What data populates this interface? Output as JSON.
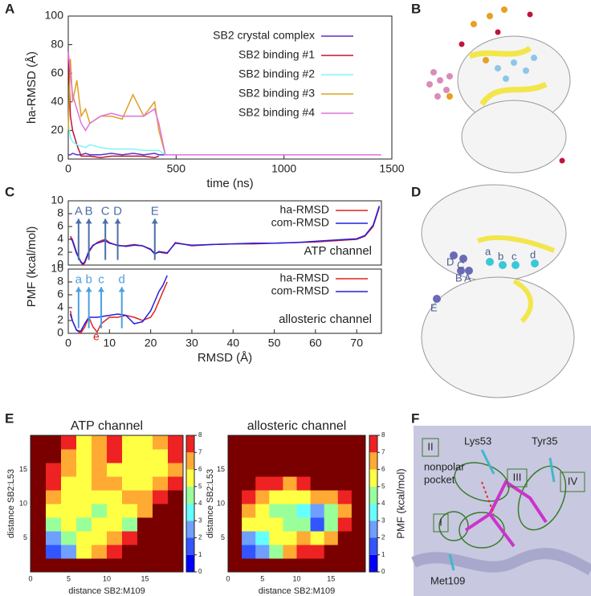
{
  "panel_labels": [
    "A",
    "B",
    "C",
    "D",
    "E",
    "F"
  ],
  "structure_D": {
    "labels": [
      "D",
      "C",
      "a",
      "b",
      "c",
      "d",
      "B",
      "A",
      "E"
    ]
  },
  "structure_F": {
    "labels": [
      "II",
      "Lys53",
      "Tyr35",
      "III",
      "IV",
      "I",
      "Met109"
    ],
    "pocket_lines": [
      "nonpolar",
      "pocket"
    ]
  },
  "chart_data": [
    {
      "type": "line",
      "xlabel": "time (ns)",
      "ylabel": "ha-RMSD (Å)",
      "xlim": [
        0,
        1500
      ],
      "xticks": [
        0,
        500,
        1000,
        1500
      ],
      "ylim": [
        0,
        100
      ],
      "yticks": [
        0,
        20,
        40,
        60,
        80,
        100
      ],
      "x": [
        0,
        10,
        20,
        40,
        60,
        80,
        100,
        150,
        200,
        250,
        300,
        350,
        400,
        420,
        450,
        500,
        600,
        700,
        800,
        900,
        1000,
        1100,
        1200,
        1300,
        1400,
        1450
      ],
      "series": [
        {
          "name": "SB2 crystal complex",
          "color": "#5a2fc8",
          "values": [
            3,
            3,
            4,
            3,
            3,
            4,
            3,
            3,
            4,
            3,
            4,
            3,
            4,
            3,
            3,
            3,
            3,
            3,
            3,
            3,
            3,
            3,
            3,
            3,
            3,
            3
          ]
        },
        {
          "name": "SB2 binding #1",
          "color": "#c0143c",
          "values": [
            75,
            30,
            20,
            10,
            2,
            2,
            2,
            1,
            2,
            2,
            2,
            2,
            1,
            2,
            null,
            null,
            null,
            null,
            null,
            null,
            null,
            null,
            null,
            null,
            null,
            null
          ]
        },
        {
          "name": "SB2 binding #2",
          "color": "#7ff5f5",
          "values": [
            25,
            15,
            12,
            10,
            9,
            8,
            10,
            8,
            7,
            7,
            7,
            6,
            6,
            6,
            3,
            3,
            3,
            3,
            3,
            3,
            3,
            3,
            3,
            3,
            3,
            null
          ]
        },
        {
          "name": "SB2 binding #3",
          "color": "#e0a020",
          "values": [
            20,
            70,
            40,
            55,
            30,
            35,
            25,
            30,
            30,
            28,
            45,
            30,
            40,
            20,
            3,
            3,
            3,
            3,
            3,
            3,
            3,
            3,
            3,
            3,
            3,
            3
          ]
        },
        {
          "name": "SB2 binding #4",
          "color": "#e070e0",
          "values": [
            75,
            60,
            45,
            35,
            25,
            20,
            25,
            30,
            32,
            30,
            30,
            30,
            35,
            25,
            3,
            3,
            3,
            3,
            3,
            3,
            3,
            3,
            3,
            3,
            3,
            3
          ]
        }
      ]
    },
    {
      "type": "line",
      "ylabel": "PMF (kcal/mol)",
      "annotation_text": "ATP channel",
      "arrow_color": "#4a6fa8",
      "xlim": [
        0,
        76
      ],
      "ylim": [
        0,
        10
      ],
      "yticks": [
        0,
        2,
        4,
        6,
        8,
        10
      ],
      "x": [
        0.5,
        1,
        2,
        3,
        3.5,
        4,
        5,
        6,
        7,
        8,
        9,
        10,
        12,
        14,
        16,
        18,
        20,
        21,
        22,
        24,
        26,
        30,
        35,
        40,
        45,
        50,
        55,
        60,
        65,
        70,
        72,
        74,
        75.5
      ],
      "series": [
        {
          "name": "ha-RMSD",
          "color": "#e02020",
          "values": [
            4.5,
            4,
            2,
            0.5,
            0,
            0.3,
            2,
            3,
            3.5,
            3.8,
            4,
            3.5,
            3,
            3,
            3.2,
            3,
            2.5,
            1.8,
            2,
            1.8,
            3.5,
            3,
            3.2,
            3.3,
            3.3,
            3.4,
            3.5,
            3.6,
            3.8,
            4,
            4.5,
            6,
            9
          ]
        },
        {
          "name": "com-RMSD",
          "color": "#2020e0",
          "values": [
            4.2,
            3.8,
            1.8,
            0.6,
            0.2,
            0.5,
            2.2,
            3.1,
            3.4,
            3.6,
            3.8,
            3.4,
            3.1,
            2.9,
            3.1,
            3,
            2.4,
            1.7,
            2.1,
            1.9,
            3.4,
            3.1,
            3.2,
            3.3,
            3.4,
            3.4,
            3.5,
            3.7,
            3.9,
            4.1,
            4.6,
            6.2,
            9.2
          ]
        }
      ],
      "annotations": [
        {
          "label": "A",
          "x": 2.5
        },
        {
          "label": "B",
          "x": 5
        },
        {
          "label": "C",
          "x": 9
        },
        {
          "label": "D",
          "x": 12
        },
        {
          "label": "E",
          "x": 21
        }
      ]
    },
    {
      "type": "line",
      "xlabel": "RMSD (Å)",
      "annotation_text": "allosteric channel",
      "arrow_color": "#4aa0e0",
      "xlim": [
        0,
        76
      ],
      "xticks": [
        0,
        10,
        20,
        30,
        40,
        50,
        60,
        70
      ],
      "ylim": [
        0,
        10
      ],
      "yticks": [
        0,
        2,
        4,
        6,
        8,
        10
      ],
      "x": [
        0.5,
        1,
        2,
        3,
        4,
        5,
        6,
        7,
        8,
        9,
        10,
        12,
        14,
        16,
        18,
        20,
        21,
        22,
        23,
        24
      ],
      "series": [
        {
          "name": "ha-RMSD",
          "color": "#e02020",
          "values": [
            3.5,
            2,
            0.5,
            0,
            1,
            2.5,
            1,
            0.2,
            1.5,
            2,
            2.5,
            2.5,
            2.8,
            2.5,
            2,
            2.5,
            3.5,
            5,
            6.5,
            8
          ]
        },
        {
          "name": "com-RMSD",
          "color": "#2020e0",
          "values": [
            3,
            2,
            0.5,
            0.3,
            1.5,
            2.5,
            2.5,
            2.5,
            2.6,
            2.7,
            2.8,
            3,
            2.8,
            1.5,
            1.8,
            3.5,
            5,
            6.5,
            7.5,
            9
          ]
        }
      ],
      "annotations": [
        {
          "label": "a",
          "x": 2.5
        },
        {
          "label": "b",
          "x": 5
        },
        {
          "label": "c",
          "x": 8
        },
        {
          "label": "d",
          "x": 13
        }
      ],
      "minimum_label": {
        "label": "e",
        "x": 6.8,
        "color": "#d02020"
      }
    },
    {
      "type": "contour",
      "title": "ATP channel",
      "xlabel": "distance SB2:M109",
      "ylabel": "distance SB2:L53",
      "xlim": [
        0,
        20
      ],
      "ylim": [
        0,
        20
      ],
      "xticks": [
        0,
        5,
        10,
        15
      ],
      "yticks": [
        5,
        10,
        15
      ],
      "cticks": [
        0,
        1,
        2,
        3,
        4,
        5,
        6,
        7,
        8
      ],
      "colors": [
        "#0000ff",
        "#3355ff",
        "#6f9fff",
        "#66ffff",
        "#99ff99",
        "#ffff44",
        "#ffaa33",
        "#ee2222",
        "#7a0000"
      ],
      "z": [
        [
          8,
          8,
          8,
          8,
          8,
          8,
          8,
          8,
          8,
          8
        ],
        [
          8,
          1,
          2,
          5,
          6,
          7,
          8,
          8,
          8,
          8
        ],
        [
          8,
          2,
          4,
          5,
          5,
          6,
          7,
          8,
          8,
          8
        ],
        [
          8,
          4,
          5,
          4,
          5,
          5,
          4,
          8,
          8,
          8
        ],
        [
          8,
          5,
          5,
          5,
          4,
          5,
          5,
          6,
          8,
          8
        ],
        [
          8,
          6,
          5,
          5,
          5,
          5,
          6,
          6,
          7,
          8
        ],
        [
          8,
          7,
          5,
          5,
          6,
          6,
          5,
          5,
          6,
          7
        ],
        [
          8,
          7,
          6,
          5,
          6,
          5,
          5,
          5,
          5,
          6
        ],
        [
          8,
          8,
          6,
          5,
          6,
          7,
          5,
          5,
          5,
          7
        ],
        [
          8,
          8,
          7,
          5,
          6,
          7,
          5,
          5,
          6,
          7
        ]
      ]
    },
    {
      "type": "contour",
      "title": "allosteric channel",
      "xlabel": "distance SB2:M109",
      "ylabel": "distance SB2:L53",
      "colorbar_label": "PMF (kcal/mol)",
      "xlim": [
        0,
        20
      ],
      "ylim": [
        0,
        20
      ],
      "xticks": [
        0,
        5,
        10,
        15
      ],
      "yticks": [
        5,
        10,
        15
      ],
      "cticks": [
        0,
        1,
        2,
        3,
        4,
        5,
        6,
        7,
        8
      ],
      "colors": [
        "#0000ff",
        "#3355ff",
        "#6f9fff",
        "#66ffff",
        "#99ff99",
        "#ffff44",
        "#ffaa33",
        "#ee2222",
        "#7a0000"
      ],
      "z": [
        [
          8,
          8,
          8,
          8,
          8,
          8,
          8,
          8,
          8,
          8
        ],
        [
          8,
          1,
          2,
          4,
          6,
          7,
          7,
          8,
          8,
          8
        ],
        [
          8,
          2,
          3,
          5,
          5,
          6,
          5,
          6,
          8,
          8
        ],
        [
          8,
          5,
          5,
          5,
          4,
          4,
          1,
          4,
          7,
          8
        ],
        [
          8,
          6,
          5,
          4,
          4,
          3,
          2,
          4,
          6,
          8
        ],
        [
          8,
          7,
          6,
          5,
          5,
          5,
          6,
          6,
          7,
          8
        ],
        [
          8,
          8,
          7,
          7,
          6,
          7,
          8,
          8,
          8,
          8
        ],
        [
          8,
          8,
          8,
          8,
          8,
          8,
          8,
          8,
          8,
          8
        ],
        [
          8,
          8,
          8,
          8,
          8,
          8,
          8,
          8,
          8,
          8
        ],
        [
          8,
          8,
          8,
          8,
          8,
          8,
          8,
          8,
          8,
          8
        ]
      ]
    }
  ]
}
